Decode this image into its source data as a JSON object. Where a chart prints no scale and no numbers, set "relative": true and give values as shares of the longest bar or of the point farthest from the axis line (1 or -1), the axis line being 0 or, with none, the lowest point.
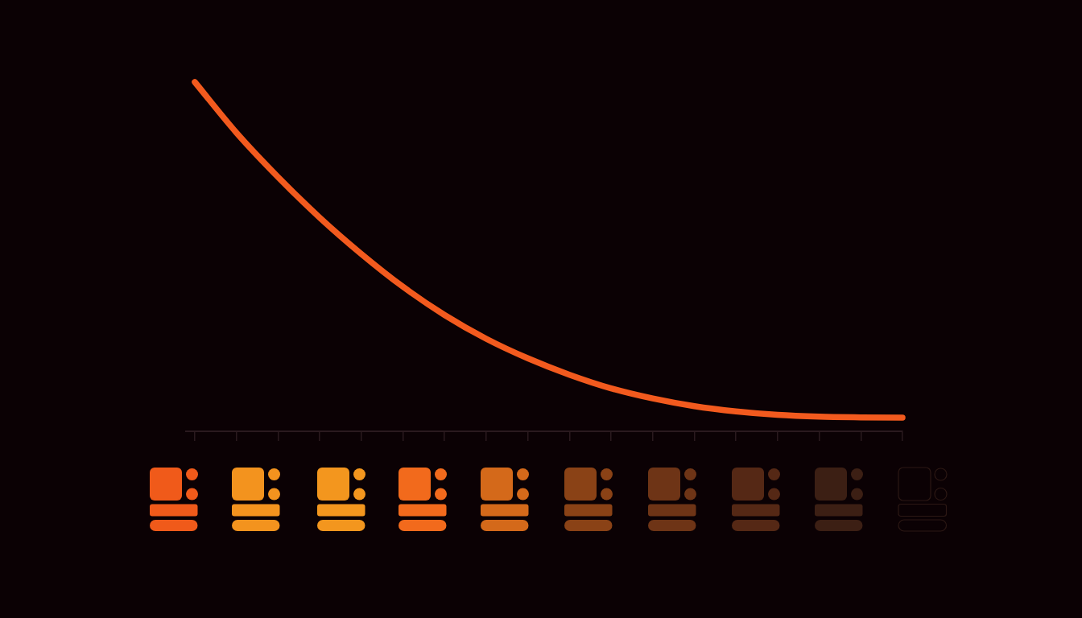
{
  "chart_data": {
    "type": "line",
    "relative": true,
    "categories": [
      null,
      null,
      null,
      null,
      null,
      null,
      null,
      null,
      null,
      null,
      null,
      null,
      null,
      null,
      null,
      null,
      null,
      null
    ],
    "values": [
      1.0,
      0.855,
      0.728,
      0.612,
      0.508,
      0.414,
      0.333,
      0.265,
      0.209,
      0.162,
      0.123,
      0.094,
      0.072,
      0.057,
      0.047,
      0.042,
      0.04,
      0.039
    ],
    "color": "#f25a1e",
    "grid": false,
    "marker": "none",
    "line_style": "solid"
  }
}
